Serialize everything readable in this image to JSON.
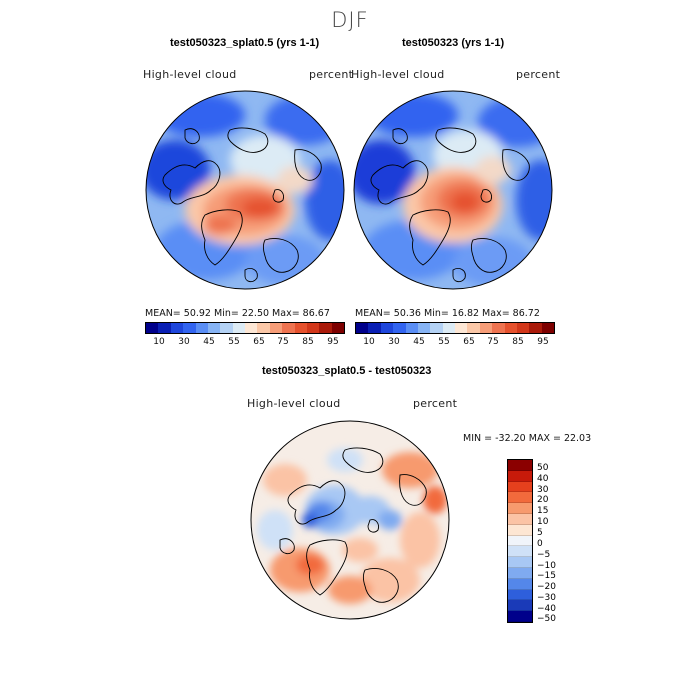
{
  "season": "DJF",
  "panel1": {
    "title": "test050323_splat0.5 (yrs 1-1)",
    "variable": "High-level cloud",
    "units": "percent",
    "stats": "MEAN=  50.92   Min=  22.50   Max=  86.67"
  },
  "panel2": {
    "title": "test050323 (yrs 1-1)",
    "variable": "High-level cloud",
    "units": "percent",
    "stats": "MEAN=  50.36   Min=  16.82   Max=  86.72"
  },
  "panel3": {
    "title": "test050323_splat0.5 - test050323",
    "variable": "High-level cloud",
    "units": "percent",
    "minmax": "MIN = -32.20  MAX =  22.03"
  },
  "abs_colorbar": {
    "colors": [
      "#00008b",
      "#0a1fb4",
      "#1e46dc",
      "#3264f0",
      "#5a8ef5",
      "#87b4f5",
      "#b4d2f5",
      "#dcebf5",
      "#fde7d5",
      "#fbc8a8",
      "#f69d78",
      "#ee7350",
      "#e5512d",
      "#d2371a",
      "#aa1a0a",
      "#7d0000"
    ],
    "ticks": [
      "10",
      "30",
      "45",
      "55",
      "65",
      "75",
      "85",
      "95"
    ]
  },
  "diff_colorbar": {
    "colors": [
      "#8b0000",
      "#c71a0a",
      "#e5401d",
      "#f26a3c",
      "#f79a6e",
      "#fbc3a5",
      "#fde6d3",
      "#f0f4fa",
      "#cfe1f7",
      "#a8c8f4",
      "#7faaf0",
      "#5487ea",
      "#2e5fdc",
      "#1a3ab8",
      "#00008b"
    ],
    "ticks": [
      "50",
      "40",
      "30",
      "20",
      "15",
      "10",
      "5",
      "0",
      "−5",
      "−10",
      "−15",
      "−20",
      "−30",
      "−40",
      "−50"
    ]
  }
}
